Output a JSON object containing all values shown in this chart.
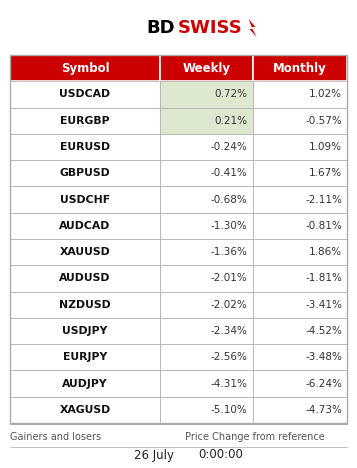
{
  "header": [
    "Symbol",
    "Weekly",
    "Monthly"
  ],
  "rows": [
    [
      "USDCAD",
      "0.72%",
      "1.02%"
    ],
    [
      "EURGBP",
      "0.21%",
      "-0.57%"
    ],
    [
      "EURUSD",
      "-0.24%",
      "1.09%"
    ],
    [
      "GBPUSD",
      "-0.41%",
      "1.67%"
    ],
    [
      "USDCHF",
      "-0.68%",
      "-2.11%"
    ],
    [
      "AUDCAD",
      "-1.30%",
      "-0.81%"
    ],
    [
      "XAUUSD",
      "-1.36%",
      "1.86%"
    ],
    [
      "AUDUSD",
      "-2.01%",
      "-1.81%"
    ],
    [
      "NZDUSD",
      "-2.02%",
      "-3.41%"
    ],
    [
      "USDJPY",
      "-2.34%",
      "-4.52%"
    ],
    [
      "EURJPY",
      "-2.56%",
      "-3.48%"
    ],
    [
      "AUDJPY",
      "-4.31%",
      "-6.24%"
    ],
    [
      "XAGUSD",
      "-5.10%",
      "-4.73%"
    ]
  ],
  "weekly_highlight_rows": [
    0,
    1
  ],
  "header_bg": "#cc0000",
  "header_fg": "#ffffff",
  "highlight_bg": "#dce8d0",
  "normal_bg": "#ffffff",
  "border_color": "#aaaaaa",
  "symbol_color": "#111111",
  "value_color": "#333333",
  "footer_left": "Gainers and losers",
  "footer_right": "Price Change from reference",
  "footer_date": "26 July",
  "footer_time": "0:00:00",
  "footer_color": "#555555",
  "logo_bd_color": "#000000",
  "logo_swiss_color": "#cc0000",
  "logo_arrow_color": "#cc0000"
}
